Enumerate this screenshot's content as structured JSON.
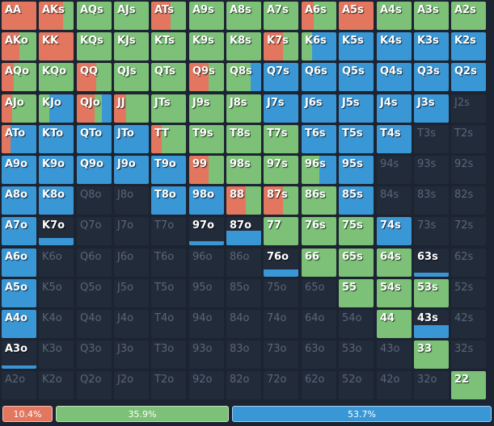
{
  "colors": {
    "raise": "#e2765f",
    "call": "#7cc177",
    "fold": "#3a97d6",
    "empty": "#222b3a"
  },
  "grid": {
    "rows": [
      [
        "AA",
        "AKs",
        "AQs",
        "AJs",
        "ATs",
        "A9s",
        "A8s",
        "A7s",
        "A6s",
        "A5s",
        "A4s",
        "A3s",
        "A2s"
      ],
      [
        "AKo",
        "KK",
        "KQs",
        "KJs",
        "KTs",
        "K9s",
        "K8s",
        "K7s",
        "K6s",
        "K5s",
        "K4s",
        "K3s",
        "K2s"
      ],
      [
        "AQo",
        "KQo",
        "QQ",
        "QJs",
        "QTs",
        "Q9s",
        "Q8s",
        "Q7s",
        "Q6s",
        "Q5s",
        "Q4s",
        "Q3s",
        "Q2s"
      ],
      [
        "AJo",
        "KJo",
        "QJo",
        "JJ",
        "JTs",
        "J9s",
        "J8s",
        "J7s",
        "J6s",
        "J5s",
        "J4s",
        "J3s",
        "J2s"
      ],
      [
        "ATo",
        "KTo",
        "QTo",
        "JTo",
        "TT",
        "T9s",
        "T8s",
        "T7s",
        "T6s",
        "T5s",
        "T4s",
        "T3s",
        "T2s"
      ],
      [
        "A9o",
        "K9o",
        "Q9o",
        "J9o",
        "T9o",
        "99",
        "98s",
        "97s",
        "96s",
        "95s",
        "94s",
        "93s",
        "92s"
      ],
      [
        "A8o",
        "K8o",
        "Q8o",
        "J8o",
        "T8o",
        "98o",
        "88",
        "87s",
        "86s",
        "85s",
        "84s",
        "83s",
        "82s"
      ],
      [
        "A7o",
        "K7o",
        "Q7o",
        "J7o",
        "T7o",
        "97o",
        "87o",
        "77",
        "76s",
        "75s",
        "74s",
        "73s",
        "72s"
      ],
      [
        "A6o",
        "K6o",
        "Q6o",
        "J6o",
        "T6o",
        "96o",
        "86o",
        "76o",
        "66",
        "65s",
        "64s",
        "63s",
        "62s"
      ],
      [
        "A5o",
        "K5o",
        "Q5o",
        "J5o",
        "T5o",
        "95o",
        "85o",
        "75o",
        "65o",
        "55",
        "54s",
        "53s",
        "52s"
      ],
      [
        "A4o",
        "K4o",
        "Q4o",
        "J4o",
        "T4o",
        "94o",
        "84o",
        "74o",
        "64o",
        "54o",
        "44",
        "43s",
        "42s"
      ],
      [
        "A3o",
        "K3o",
        "Q3o",
        "J3o",
        "T3o",
        "93o",
        "83o",
        "73o",
        "63o",
        "53o",
        "43o",
        "33",
        "32s"
      ],
      [
        "A2o",
        "K2o",
        "Q2o",
        "J2o",
        "T2o",
        "92o",
        "82o",
        "72o",
        "62o",
        "52o",
        "42o",
        "32o",
        "22"
      ]
    ],
    "hands": {
      "AA": [
        1,
        0,
        0,
        1
      ],
      "AKs": [
        0.7,
        0.3,
        0,
        1
      ],
      "AQs": [
        0,
        1,
        0,
        1
      ],
      "AJs": [
        0,
        1,
        0,
        1
      ],
      "ATs": [
        0.55,
        0.45,
        0,
        1
      ],
      "A9s": [
        0,
        1,
        0,
        1
      ],
      "A8s": [
        0,
        1,
        0,
        1
      ],
      "A7s": [
        0,
        1,
        0,
        1
      ],
      "A6s": [
        0.35,
        0.65,
        0,
        1
      ],
      "A5s": [
        1,
        0,
        0,
        1
      ],
      "A4s": [
        0,
        1,
        0,
        1
      ],
      "A3s": [
        0,
        1,
        0,
        1
      ],
      "A2s": [
        0,
        1,
        0,
        1
      ],
      "AKo": [
        0.5,
        0.5,
        0,
        1
      ],
      "KK": [
        1,
        0,
        0,
        1
      ],
      "KQs": [
        0,
        1,
        0,
        1
      ],
      "KJs": [
        0,
        1,
        0,
        1
      ],
      "KTs": [
        0,
        1,
        0,
        1
      ],
      "K9s": [
        0,
        1,
        0,
        1
      ],
      "K8s": [
        0,
        1,
        0,
        1
      ],
      "K7s": [
        0.55,
        0.45,
        0,
        1
      ],
      "K6s": [
        0,
        0.3,
        0.7,
        1
      ],
      "K5s": [
        0,
        0,
        1,
        1
      ],
      "K4s": [
        0,
        0,
        1,
        1
      ],
      "K3s": [
        0,
        0,
        1,
        1
      ],
      "K2s": [
        0,
        0,
        1,
        1
      ],
      "AQo": [
        0.35,
        0.65,
        0,
        1
      ],
      "KQo": [
        0,
        1,
        0,
        1
      ],
      "QQ": [
        0.55,
        0.45,
        0,
        1
      ],
      "QJs": [
        0,
        1,
        0,
        1
      ],
      "QTs": [
        0,
        1,
        0,
        1
      ],
      "Q9s": [
        0.55,
        0.45,
        0,
        1
      ],
      "Q8s": [
        0,
        0.7,
        0.3,
        1
      ],
      "Q7s": [
        0,
        0,
        1,
        1
      ],
      "Q6s": [
        0,
        0,
        1,
        1
      ],
      "Q5s": [
        0,
        0,
        1,
        1
      ],
      "Q4s": [
        0,
        0,
        1,
        1
      ],
      "Q3s": [
        0,
        0,
        1,
        1
      ],
      "Q2s": [
        0,
        0,
        1,
        1
      ],
      "AJo": [
        0.3,
        0.7,
        0,
        1
      ],
      "KJo": [
        0,
        0.3,
        0.7,
        1
      ],
      "QJo": [
        0.5,
        0.2,
        0.3,
        1
      ],
      "JJ": [
        0.35,
        0.65,
        0,
        1
      ],
      "JTs": [
        0,
        1,
        0,
        1
      ],
      "J9s": [
        0,
        1,
        0,
        1
      ],
      "J8s": [
        0,
        1,
        0,
        1
      ],
      "J7s": [
        0,
        0,
        1,
        1
      ],
      "J6s": [
        0,
        0,
        1,
        1
      ],
      "J5s": [
        0,
        0,
        1,
        1
      ],
      "J4s": [
        0,
        0,
        1,
        1
      ],
      "J3s": [
        0,
        0,
        1,
        1
      ],
      "J2s": [
        0,
        0,
        0,
        0
      ],
      "ATo": [
        0.25,
        0,
        0.75,
        1
      ],
      "KTo": [
        0,
        0,
        1,
        1
      ],
      "QTo": [
        0,
        0,
        1,
        1
      ],
      "JTo": [
        0,
        0,
        1,
        1
      ],
      "TT": [
        0.3,
        0.7,
        0,
        1
      ],
      "T9s": [
        0,
        1,
        0,
        1
      ],
      "T8s": [
        0,
        1,
        0,
        1
      ],
      "T7s": [
        0,
        1,
        0,
        1
      ],
      "T6s": [
        0,
        0,
        1,
        1
      ],
      "T5s": [
        0,
        0,
        1,
        1
      ],
      "T4s": [
        0,
        0,
        1,
        1
      ],
      "T3s": [
        0,
        0,
        0,
        0
      ],
      "T2s": [
        0,
        0,
        0,
        0
      ],
      "A9o": [
        0,
        0,
        1,
        1
      ],
      "K9o": [
        0,
        0,
        1,
        1
      ],
      "Q9o": [
        0,
        0,
        1,
        1
      ],
      "J9o": [
        0,
        0,
        1,
        1
      ],
      "T9o": [
        0,
        0,
        1,
        1
      ],
      "99": [
        0.55,
        0.45,
        0,
        1
      ],
      "98s": [
        0,
        1,
        0,
        1
      ],
      "97s": [
        0,
        1,
        0,
        1
      ],
      "96s": [
        0,
        0.5,
        0.5,
        1
      ],
      "95s": [
        0,
        0,
        1,
        1
      ],
      "94s": [
        0,
        0,
        0,
        0
      ],
      "93s": [
        0,
        0,
        0,
        0
      ],
      "92s": [
        0,
        0,
        0,
        0
      ],
      "A8o": [
        0,
        0,
        1,
        1
      ],
      "K8o": [
        0,
        0,
        1,
        1
      ],
      "Q8o": [
        0,
        0,
        0,
        0
      ],
      "J8o": [
        0,
        0,
        0,
        0
      ],
      "T8o": [
        0,
        0,
        1,
        1
      ],
      "98o": [
        0,
        0,
        1,
        1
      ],
      "88": [
        0.55,
        0.45,
        0,
        1
      ],
      "87s": [
        0.55,
        0.45,
        0,
        1
      ],
      "86s": [
        0,
        1,
        0,
        1
      ],
      "85s": [
        0,
        0,
        1,
        1
      ],
      "84s": [
        0,
        0,
        0,
        0
      ],
      "83s": [
        0,
        0,
        0,
        0
      ],
      "82s": [
        0,
        0,
        0,
        0
      ],
      "A7o": [
        0,
        0,
        1,
        1
      ],
      "K7o": [
        0,
        0,
        1,
        0.25
      ],
      "Q7o": [
        0,
        0,
        0,
        0
      ],
      "J7o": [
        0,
        0,
        0,
        0
      ],
      "T7o": [
        0,
        0,
        0,
        0
      ],
      "97o": [
        0,
        0,
        1,
        0.15
      ],
      "87o": [
        0,
        0,
        1,
        0.5
      ],
      "77": [
        0,
        1,
        0,
        1
      ],
      "76s": [
        0,
        1,
        0,
        1
      ],
      "75s": [
        0,
        1,
        0,
        1
      ],
      "74s": [
        0,
        0,
        1,
        1
      ],
      "73s": [
        0,
        0,
        0,
        0
      ],
      "72s": [
        0,
        0,
        0,
        0
      ],
      "A6o": [
        0,
        0,
        1,
        1
      ],
      "K6o": [
        0,
        0,
        0,
        0
      ],
      "Q6o": [
        0,
        0,
        0,
        0
      ],
      "J6o": [
        0,
        0,
        0,
        0
      ],
      "T6o": [
        0,
        0,
        0,
        0
      ],
      "96o": [
        0,
        0,
        0,
        0
      ],
      "86o": [
        0,
        0,
        0,
        0
      ],
      "76o": [
        0,
        0,
        1,
        0.25
      ],
      "66": [
        0,
        1,
        0,
        1
      ],
      "65s": [
        0,
        1,
        0,
        1
      ],
      "64s": [
        0,
        1,
        0,
        1
      ],
      "63s": [
        0,
        0,
        1,
        0.15
      ],
      "62s": [
        0,
        0,
        0,
        0
      ],
      "A5o": [
        0,
        0,
        1,
        1
      ],
      "K5o": [
        0,
        0,
        0,
        0
      ],
      "Q5o": [
        0,
        0,
        0,
        0
      ],
      "J5o": [
        0,
        0,
        0,
        0
      ],
      "T5o": [
        0,
        0,
        0,
        0
      ],
      "95o": [
        0,
        0,
        0,
        0
      ],
      "85o": [
        0,
        0,
        0,
        0
      ],
      "75o": [
        0,
        0,
        0,
        0
      ],
      "65o": [
        0,
        0,
        0,
        0
      ],
      "55": [
        0,
        1,
        0,
        1
      ],
      "54s": [
        0,
        1,
        0,
        1
      ],
      "53s": [
        0,
        1,
        0,
        1
      ],
      "52s": [
        0,
        0,
        0,
        0
      ],
      "A4o": [
        0,
        0,
        1,
        1
      ],
      "K4o": [
        0,
        0,
        0,
        0
      ],
      "Q4o": [
        0,
        0,
        0,
        0
      ],
      "J4o": [
        0,
        0,
        0,
        0
      ],
      "T4o": [
        0,
        0,
        0,
        0
      ],
      "94o": [
        0,
        0,
        0,
        0
      ],
      "84o": [
        0,
        0,
        0,
        0
      ],
      "74o": [
        0,
        0,
        0,
        0
      ],
      "64o": [
        0,
        0,
        0,
        0
      ],
      "54o": [
        0,
        0,
        0,
        0
      ],
      "44": [
        0,
        1,
        0,
        1
      ],
      "43s": [
        0,
        0,
        1,
        0.45
      ],
      "42s": [
        0,
        0,
        0,
        0
      ],
      "A3o": [
        0,
        0,
        1,
        0.12
      ],
      "K3o": [
        0,
        0,
        0,
        0
      ],
      "Q3o": [
        0,
        0,
        0,
        0
      ],
      "J3o": [
        0,
        0,
        0,
        0
      ],
      "T3o": [
        0,
        0,
        0,
        0
      ],
      "93o": [
        0,
        0,
        0,
        0
      ],
      "83o": [
        0,
        0,
        0,
        0
      ],
      "73o": [
        0,
        0,
        0,
        0
      ],
      "63o": [
        0,
        0,
        0,
        0
      ],
      "53o": [
        0,
        0,
        0,
        0
      ],
      "43o": [
        0,
        0,
        0,
        0
      ],
      "33": [
        0,
        1,
        0,
        1
      ],
      "32s": [
        0,
        0,
        0,
        0
      ],
      "A2o": [
        0,
        0,
        0,
        0
      ],
      "K2o": [
        0,
        0,
        0,
        0
      ],
      "Q2o": [
        0,
        0,
        0,
        0
      ],
      "J2o": [
        0,
        0,
        0,
        0
      ],
      "T2o": [
        0,
        0,
        0,
        0
      ],
      "92o": [
        0,
        0,
        0,
        0
      ],
      "82o": [
        0,
        0,
        0,
        0
      ],
      "72o": [
        0,
        0,
        0,
        0
      ],
      "62o": [
        0,
        0,
        0,
        0
      ],
      "52o": [
        0,
        0,
        0,
        0
      ],
      "42o": [
        0,
        0,
        0,
        0
      ],
      "32o": [
        0,
        0,
        0,
        0
      ],
      "22": [
        0,
        1,
        0,
        1
      ]
    }
  },
  "summary": {
    "raise": {
      "label": "10.4%",
      "value": 10.4
    },
    "call": {
      "label": "35.9%",
      "value": 35.9
    },
    "fold": {
      "label": "53.7%",
      "value": 53.7
    }
  }
}
